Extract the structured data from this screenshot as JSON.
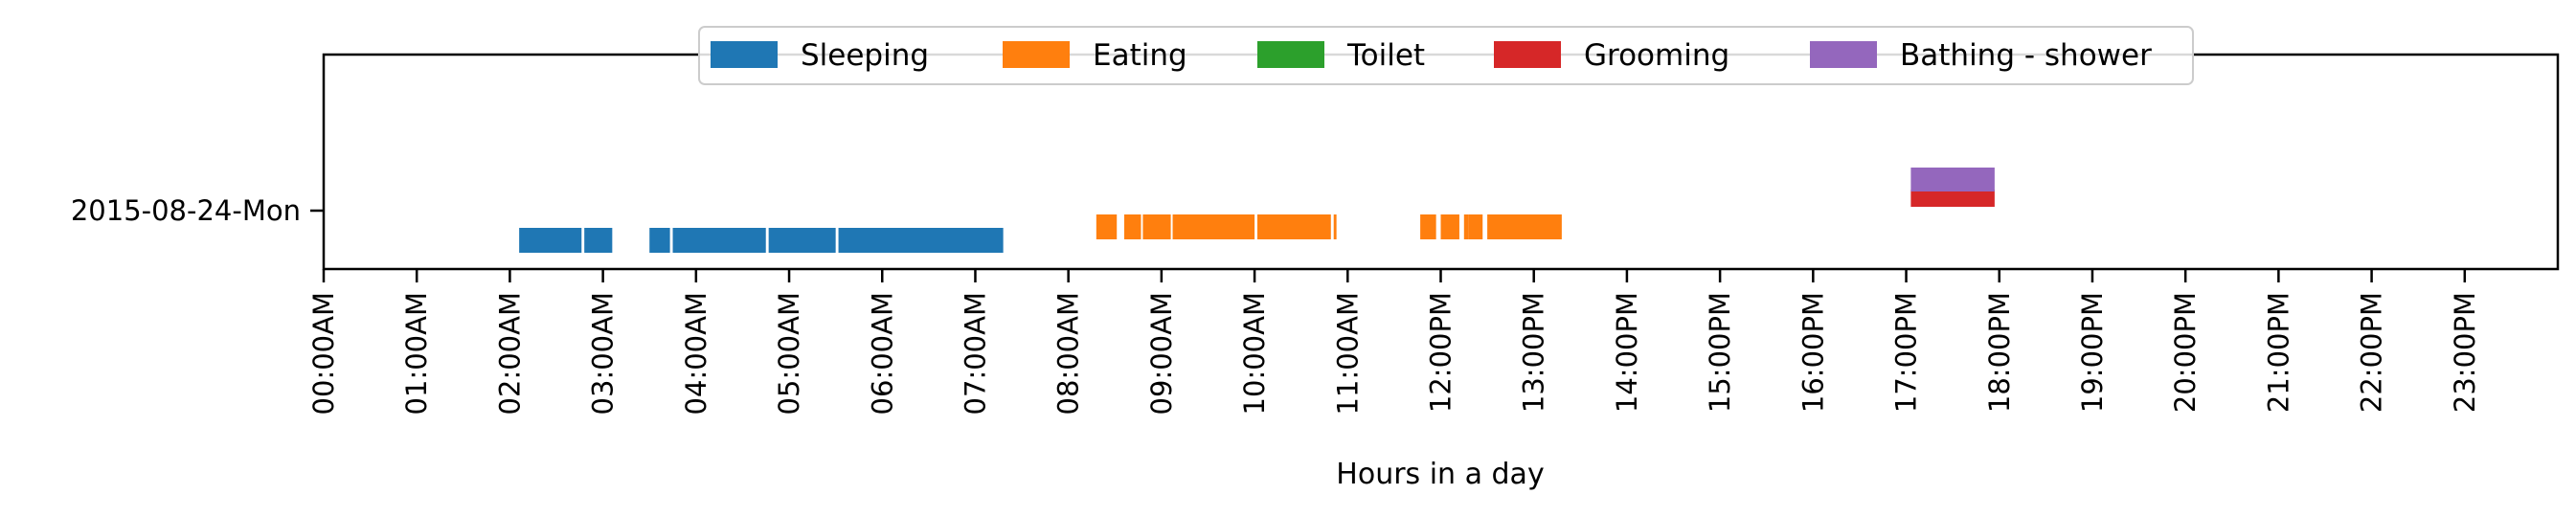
{
  "chart_data": {
    "type": "timeline",
    "title": "",
    "xlabel": "Hours in a day",
    "ylabel": "",
    "x_unit": "hours",
    "xlim": [
      0,
      24
    ],
    "x_ticks": [
      "00:00AM",
      "01:00AM",
      "02:00AM",
      "03:00AM",
      "04:00AM",
      "05:00AM",
      "06:00AM",
      "07:00AM",
      "08:00AM",
      "09:00AM",
      "10:00AM",
      "11:00AM",
      "12:00PM",
      "13:00PM",
      "14:00PM",
      "15:00PM",
      "16:00PM",
      "17:00PM",
      "18:00PM",
      "19:00PM",
      "20:00PM",
      "21:00PM",
      "22:00PM",
      "23:00PM"
    ],
    "y_categories": [
      "2015-08-24-Mon"
    ],
    "grid": false,
    "legend_position": "top-center",
    "series": [
      {
        "name": "Sleeping",
        "color": "#1f77b4",
        "intervals": [
          [
            2.1,
            2.77
          ],
          [
            2.8,
            3.1
          ],
          [
            3.5,
            3.72
          ],
          [
            3.75,
            4.75
          ],
          [
            4.78,
            5.5
          ],
          [
            5.53,
            7.3
          ]
        ]
      },
      {
        "name": "Eating",
        "color": "#ff7f0e",
        "intervals": [
          [
            8.3,
            8.52
          ],
          [
            8.6,
            8.78
          ],
          [
            8.8,
            9.1
          ],
          [
            9.12,
            10.0
          ],
          [
            10.03,
            10.82
          ],
          [
            10.85,
            10.88
          ],
          [
            11.78,
            11.95
          ],
          [
            12.0,
            12.2
          ],
          [
            12.25,
            12.3
          ],
          [
            12.3,
            12.45
          ],
          [
            12.5,
            13.3
          ]
        ]
      },
      {
        "name": "Toilet",
        "color": "#2ca02c",
        "intervals": []
      },
      {
        "name": "Grooming",
        "color": "#d62728",
        "intervals": [
          [
            17.05,
            17.95
          ]
        ]
      },
      {
        "name": "Bathing - shower",
        "color": "#9467bd",
        "intervals": [
          [
            17.05,
            17.95
          ]
        ]
      }
    ]
  }
}
